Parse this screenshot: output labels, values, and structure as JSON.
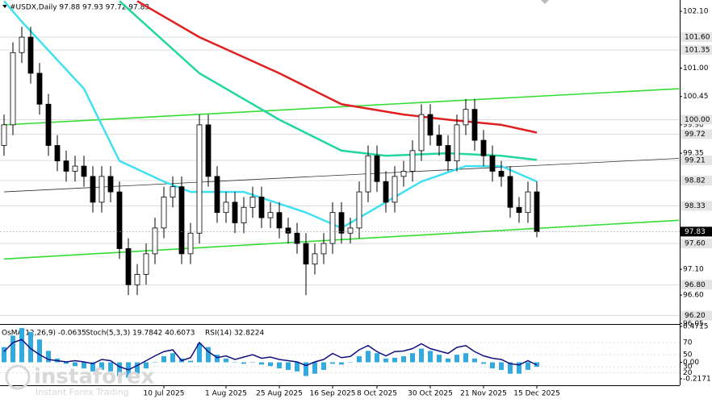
{
  "chart_data": {
    "type": "candlestick",
    "title": "#USDX,Daily  97.88 97.93 97.72 97.83",
    "open": [
      99.5,
      99.9,
      101.3,
      101.6,
      100.9,
      100.3,
      99.5,
      99.2,
      99.0,
      99.1,
      98.9,
      98.4,
      98.9,
      98.6,
      97.5,
      96.8,
      97.0,
      97.4,
      97.9,
      98.5,
      98.7,
      97.4,
      97.8,
      99.9,
      98.9,
      98.2,
      98.4,
      98.0,
      98.3,
      98.5,
      98.1,
      98.2,
      97.9,
      97.8,
      97.6,
      97.2,
      97.4,
      97.6,
      98.2,
      97.8,
      97.9,
      98.6,
      99.3,
      98.8,
      98.4,
      98.9,
      99.0,
      99.4,
      100.1,
      99.7,
      99.5,
      99.2,
      99.9,
      100.2,
      99.6,
      99.3,
      99.0,
      98.9,
      98.3,
      98.2,
      98.6
    ],
    "high": [
      100.1,
      101.5,
      101.8,
      101.8,
      101.1,
      100.5,
      99.7,
      99.4,
      99.3,
      99.3,
      99.1,
      99.1,
      99.1,
      98.8,
      97.7,
      97.2,
      97.6,
      98.1,
      98.7,
      98.9,
      98.9,
      98.0,
      100.1,
      100.1,
      99.1,
      98.6,
      98.6,
      98.5,
      98.7,
      98.7,
      98.4,
      98.4,
      98.1,
      98.0,
      97.8,
      97.6,
      97.8,
      98.4,
      98.4,
      98.1,
      98.8,
      99.5,
      99.5,
      99.0,
      99.1,
      99.2,
      99.6,
      100.3,
      100.3,
      99.9,
      99.7,
      100.1,
      100.4,
      100.4,
      99.8,
      99.5,
      99.2,
      99.1,
      98.5,
      98.8,
      98.8
    ],
    "low": [
      99.3,
      99.7,
      101.1,
      100.7,
      100.1,
      99.3,
      99.0,
      98.8,
      98.8,
      98.7,
      98.2,
      98.2,
      98.4,
      97.3,
      96.6,
      96.6,
      96.8,
      97.2,
      97.7,
      98.3,
      97.2,
      97.2,
      97.6,
      98.7,
      98.0,
      98.0,
      97.8,
      97.8,
      98.1,
      97.9,
      97.9,
      97.7,
      97.6,
      97.4,
      96.6,
      97.0,
      97.2,
      97.4,
      97.6,
      97.6,
      97.7,
      98.4,
      98.6,
      98.2,
      98.2,
      98.7,
      98.8,
      99.2,
      99.5,
      99.3,
      99.0,
      99.0,
      99.7,
      99.4,
      99.1,
      98.8,
      98.7,
      98.1,
      98.0,
      98.0,
      97.72
    ],
    "close": [
      99.9,
      101.3,
      101.6,
      100.9,
      100.3,
      99.5,
      99.2,
      99.0,
      99.1,
      98.9,
      98.4,
      98.9,
      98.6,
      97.5,
      96.8,
      97.0,
      97.4,
      97.9,
      98.5,
      98.7,
      97.4,
      97.8,
      99.9,
      98.9,
      98.2,
      98.4,
      98.0,
      98.3,
      98.5,
      98.1,
      98.2,
      97.9,
      97.8,
      97.6,
      97.2,
      97.4,
      97.6,
      98.2,
      97.8,
      97.9,
      98.6,
      99.3,
      98.8,
      98.4,
      98.9,
      99.0,
      99.4,
      100.1,
      99.7,
      99.5,
      99.2,
      99.9,
      100.2,
      99.6,
      99.3,
      99.0,
      98.9,
      98.3,
      98.2,
      98.6,
      97.83
    ],
    "categories": [
      null,
      null,
      null,
      null,
      null,
      null,
      null,
      null,
      null,
      null,
      null,
      null,
      null,
      null,
      null,
      null,
      null,
      null,
      "10 Jul 2025",
      null,
      null,
      null,
      null,
      null,
      null,
      "1 Aug 2025",
      null,
      null,
      null,
      null,
      null,
      "25 Aug 2025",
      null,
      null,
      null,
      null,
      null,
      "16 Sep 2025",
      null,
      null,
      null,
      null,
      "8 Oct 2025",
      null,
      null,
      null,
      null,
      null,
      "30 Oct 2025",
      null,
      null,
      null,
      null,
      null,
      "21 Nov 2025",
      null,
      null,
      null,
      null,
      null,
      "15 Dec 2025"
    ],
    "ylim": [
      96.07,
      102.32
    ],
    "yticks": [
      {
        "value": 102.1,
        "label": "102.10"
      },
      {
        "value": 101.0,
        "label": "101.00"
      },
      {
        "value": 100.45,
        "label": "100.45"
      },
      {
        "value": 99.9,
        "label": "99.90"
      },
      {
        "value": 99.35,
        "label": "99.35"
      },
      {
        "value": 97.1,
        "label": "97.10"
      },
      {
        "value": 96.6,
        "label": "96.60"
      },
      {
        "value": 96.05,
        "label": "96.05"
      }
    ],
    "levels": [
      {
        "value": 101.6,
        "label": "101.60"
      },
      {
        "value": 101.35,
        "label": "101.35"
      },
      {
        "value": 100.0,
        "label": "100.00"
      },
      {
        "value": 99.72,
        "label": "99.72"
      },
      {
        "value": 99.21,
        "label": "99.21"
      },
      {
        "value": 98.82,
        "label": "98.82"
      },
      {
        "value": 98.33,
        "label": "98.33"
      },
      {
        "value": 97.6,
        "label": "97.60"
      },
      {
        "value": 96.8,
        "label": "96.80"
      },
      {
        "value": 96.2,
        "label": "96.20"
      }
    ],
    "last_price": {
      "value": 97.83,
      "label": "97.83"
    },
    "series": [
      {
        "color": "#e02020",
        "x": [
          15,
          22,
          31,
          38,
          45,
          50,
          56,
          60
        ],
        "values": [
          102.3,
          101.6,
          100.9,
          100.3,
          100.1,
          100.0,
          99.9,
          99.75
        ]
      },
      {
        "color": "#22d6a0",
        "x": [
          13,
          22,
          31,
          38,
          43,
          50,
          56,
          60
        ],
        "values": [
          102.3,
          100.9,
          100.0,
          99.4,
          99.3,
          99.35,
          99.3,
          99.22
        ]
      },
      {
        "color": "#40e0f0",
        "x": [
          0,
          2,
          9,
          13,
          18,
          21,
          27,
          34,
          38,
          42,
          47,
          52,
          56,
          60
        ],
        "values": [
          102.3,
          101.9,
          100.6,
          99.2,
          98.8,
          98.6,
          98.6,
          98.2,
          97.9,
          98.3,
          98.8,
          99.1,
          99.1,
          98.8
        ]
      }
    ],
    "trendlines": [
      {
        "color": "#33dd33",
        "x": [
          0,
          76
        ],
        "values": [
          99.9,
          100.6
        ]
      },
      {
        "color": "#33dd33",
        "x": [
          0,
          76
        ],
        "values": [
          97.3,
          98.05
        ]
      },
      {
        "color": "#333333",
        "x": [
          0,
          76
        ],
        "values": [
          98.6,
          99.25
        ]
      }
    ],
    "oscillator": {
      "osma_label": "OsMA(12,26,9) -0.0635",
      "stoch_label": "Stoch(5,3,3) 19.7842 40.6073",
      "rsi_label": "RSI(14) 32.8224",
      "osma": [
        0.2,
        0.35,
        0.45,
        0.4,
        0.3,
        0.15,
        0.05,
        -0.02,
        -0.05,
        -0.08,
        -0.12,
        -0.1,
        -0.12,
        -0.18,
        -0.2,
        -0.15,
        -0.08,
        0.0,
        0.08,
        0.12,
        0.05,
        0.02,
        0.25,
        0.2,
        0.1,
        0.05,
        0.0,
        -0.02,
        0.0,
        -0.03,
        -0.05,
        -0.08,
        -0.1,
        -0.12,
        -0.18,
        -0.15,
        -0.1,
        -0.02,
        -0.03,
        0.0,
        0.08,
        0.15,
        0.12,
        0.05,
        0.06,
        0.08,
        0.12,
        0.18,
        0.15,
        0.1,
        0.05,
        0.1,
        0.12,
        0.05,
        -0.02,
        -0.08,
        -0.1,
        -0.15,
        -0.15,
        -0.1,
        -0.06
      ],
      "osma_color": "#33aadd",
      "osma_lim": [
        -0.2171,
        0.4715
      ],
      "osma_ticks": [
        {
          "value": 0.4715,
          "label": "0.4715"
        },
        {
          "value": 0,
          "label": "0.00"
        },
        {
          "value": -0.2171,
          "label": "-0.2171"
        }
      ],
      "rsi": [
        55,
        70,
        75,
        60,
        50,
        42,
        40,
        38,
        40,
        38,
        35,
        42,
        40,
        30,
        25,
        32,
        40,
        48,
        55,
        58,
        40,
        45,
        70,
        55,
        45,
        48,
        42,
        46,
        50,
        44,
        46,
        42,
        40,
        38,
        32,
        38,
        42,
        52,
        45,
        47,
        58,
        65,
        55,
        48,
        55,
        56,
        60,
        68,
        60,
        56,
        52,
        62,
        65,
        55,
        48,
        44,
        42,
        35,
        33,
        40,
        32.8224
      ],
      "rsi_color": "#101080",
      "rsi_lim": [
        0,
        100
      ],
      "rsi_ticks": [
        70,
        50,
        30,
        20
      ]
    },
    "watermark": {
      "brand": "instaforex",
      "tagline": "Instant Forex Trading"
    }
  }
}
